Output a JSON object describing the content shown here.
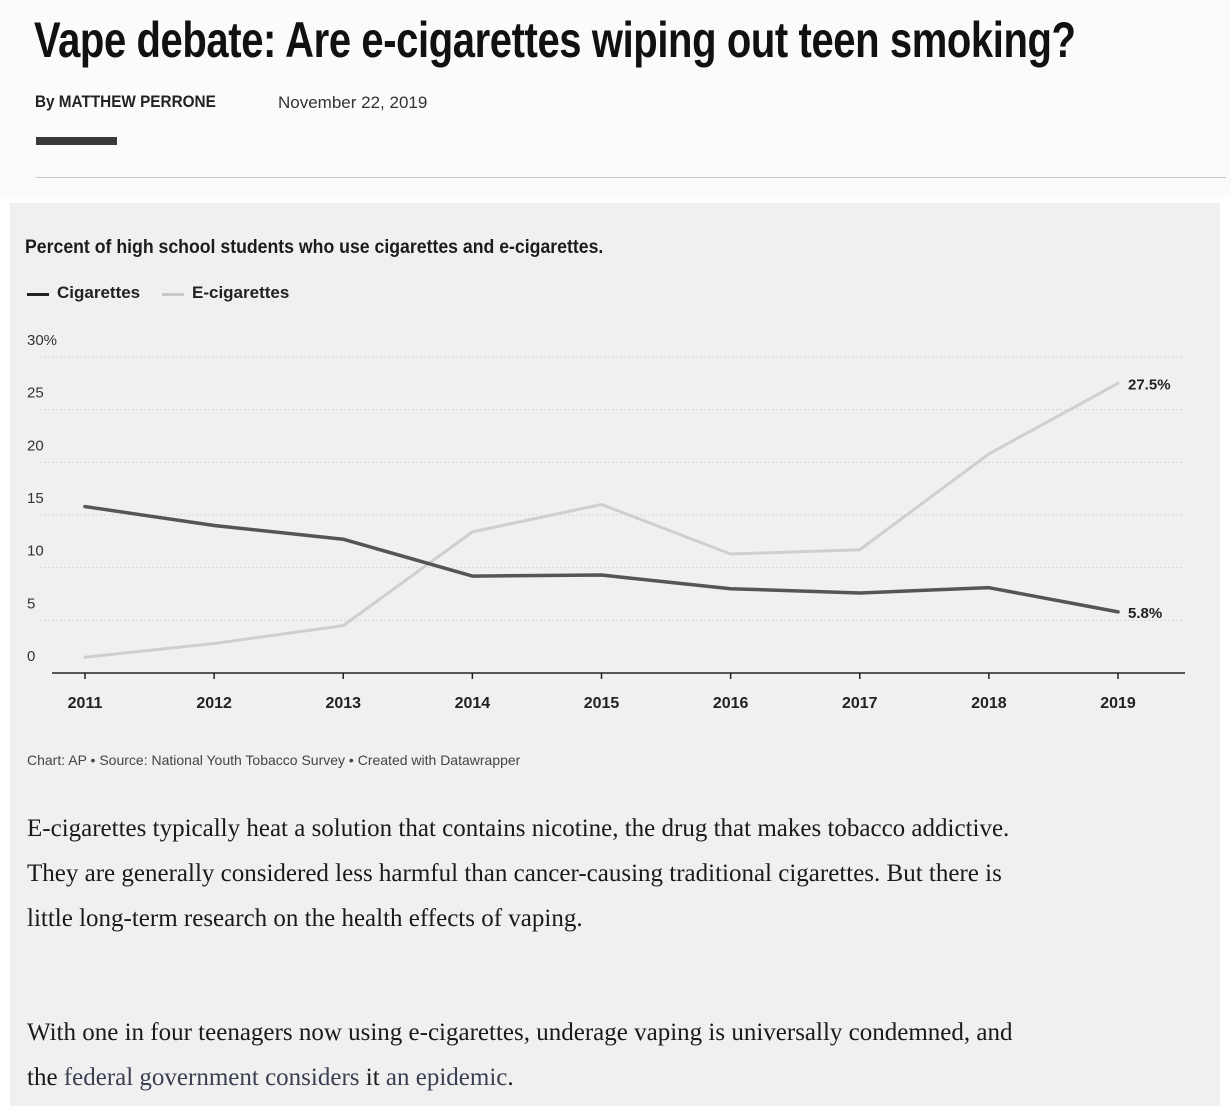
{
  "article": {
    "headline": "Vape debate: Are e-cigarettes wiping out teen smoking?",
    "byline": "By MATTHEW PERRONE",
    "date": "November 22, 2019"
  },
  "chart_data": {
    "type": "line",
    "title": "Percent of high school students who use cigarettes and e-cigarettes.",
    "x": [
      2011,
      2012,
      2013,
      2014,
      2015,
      2016,
      2017,
      2018,
      2019
    ],
    "ylim": [
      0,
      30
    ],
    "yticks": [
      "30%",
      "25",
      "20",
      "15",
      "10",
      "5",
      "0"
    ],
    "yticks_values": [
      30,
      25,
      20,
      15,
      10,
      5,
      0
    ],
    "grid": true,
    "legend_position": "top-left",
    "series": [
      {
        "name": "Cigarettes",
        "color": "#555555",
        "values": [
          15.8,
          14.0,
          12.7,
          9.2,
          9.3,
          8.0,
          7.6,
          8.1,
          5.8
        ],
        "end_label": "5.8%"
      },
      {
        "name": "E-cigarettes",
        "color": "#cfcfcf",
        "values": [
          1.5,
          2.8,
          4.5,
          13.4,
          16.0,
          11.3,
          11.7,
          20.8,
          27.5
        ],
        "end_label": "27.5%"
      }
    ],
    "source": "Chart: AP • Source: National Youth Tobacco Survey • Created with Datawrapper"
  },
  "body": {
    "paragraph_1": "E-cigarettes typically heat a solution that contains nicotine, the drug that makes tobacco addictive. They are generally considered less harmful than cancer-causing traditional cigarettes. But there is little long-term research on the health effects of vaping.",
    "paragraph_2_start": "With one in four teenagers now using e-cigarettes, underage vaping is universally condemned, and the ",
    "paragraph_2_link_1": "federal government considers",
    "paragraph_2_mid": " it ",
    "paragraph_2_link_2": "an epidemic",
    "paragraph_2_end": "."
  }
}
